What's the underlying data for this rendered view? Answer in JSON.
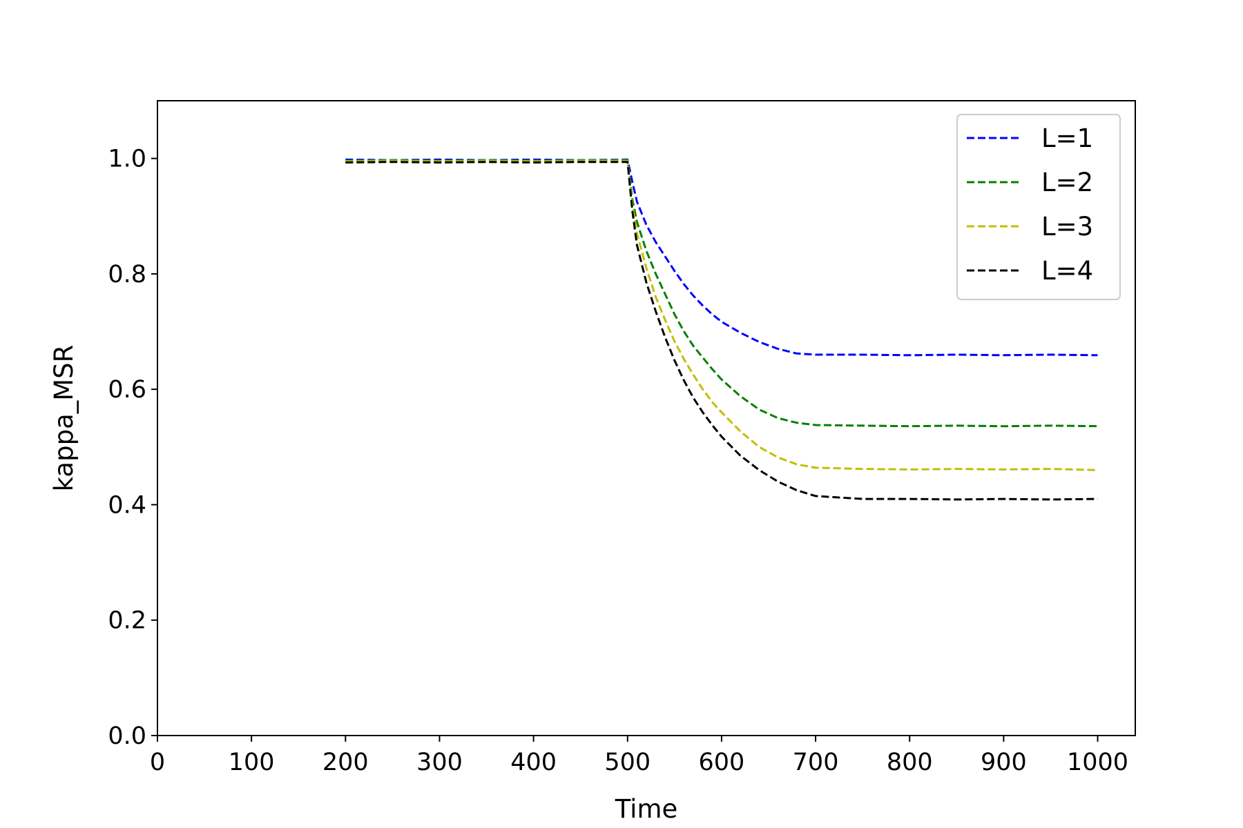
{
  "chart_data": {
    "type": "line",
    "title": "",
    "xlabel": "Time",
    "ylabel": "kappa_MSR",
    "xlim": [
      0,
      1040
    ],
    "ylim": [
      0.0,
      1.1
    ],
    "xticks": [
      0,
      100,
      200,
      300,
      400,
      500,
      600,
      700,
      800,
      900,
      1000
    ],
    "yticks": [
      0.0,
      0.2,
      0.4,
      0.6,
      0.8,
      1.0
    ],
    "xtick_labels": [
      "0",
      "100",
      "200",
      "300",
      "400",
      "500",
      "600",
      "700",
      "800",
      "900",
      "1000"
    ],
    "ytick_labels": [
      "0.0",
      "0.2",
      "0.4",
      "0.6",
      "0.8",
      "1.0"
    ],
    "grid": false,
    "legend_position": "top-right",
    "line_style": "dashed",
    "series": [
      {
        "name": "L=1",
        "color": "#0000ff",
        "x": [
          200,
          250,
          300,
          350,
          400,
          450,
          500,
          505,
          510,
          520,
          530,
          540,
          550,
          560,
          570,
          580,
          590,
          600,
          620,
          640,
          660,
          680,
          700,
          750,
          800,
          850,
          900,
          950,
          1000
        ],
        "y": [
          0.998,
          0.997,
          0.998,
          0.997,
          0.998,
          0.997,
          0.998,
          0.96,
          0.925,
          0.885,
          0.855,
          0.83,
          0.805,
          0.782,
          0.762,
          0.745,
          0.73,
          0.717,
          0.698,
          0.682,
          0.67,
          0.662,
          0.66,
          0.66,
          0.659,
          0.66,
          0.659,
          0.66,
          0.659
        ]
      },
      {
        "name": "L=2",
        "color": "#008000",
        "x": [
          200,
          250,
          300,
          350,
          400,
          450,
          500,
          505,
          510,
          520,
          530,
          540,
          550,
          560,
          570,
          580,
          590,
          600,
          620,
          640,
          660,
          680,
          700,
          750,
          800,
          850,
          900,
          950,
          1000
        ],
        "y": [
          0.996,
          0.997,
          0.996,
          0.997,
          0.996,
          0.997,
          0.997,
          0.93,
          0.89,
          0.84,
          0.8,
          0.765,
          0.73,
          0.7,
          0.675,
          0.655,
          0.635,
          0.617,
          0.588,
          0.565,
          0.55,
          0.542,
          0.538,
          0.537,
          0.536,
          0.537,
          0.536,
          0.537,
          0.536
        ]
      },
      {
        "name": "L=3",
        "color": "#bfbf00",
        "x": [
          200,
          250,
          300,
          350,
          400,
          450,
          500,
          505,
          510,
          520,
          530,
          540,
          550,
          560,
          570,
          580,
          590,
          600,
          620,
          640,
          660,
          680,
          700,
          750,
          800,
          850,
          900,
          950,
          1000
        ],
        "y": [
          0.995,
          0.996,
          0.995,
          0.996,
          0.995,
          0.996,
          0.996,
          0.92,
          0.87,
          0.81,
          0.76,
          0.72,
          0.683,
          0.652,
          0.625,
          0.6,
          0.578,
          0.56,
          0.527,
          0.5,
          0.482,
          0.47,
          0.464,
          0.462,
          0.461,
          0.462,
          0.461,
          0.462,
          0.46
        ]
      },
      {
        "name": "L=4",
        "color": "#000000",
        "x": [
          200,
          250,
          300,
          350,
          400,
          450,
          500,
          505,
          510,
          520,
          530,
          540,
          550,
          560,
          570,
          580,
          590,
          600,
          620,
          640,
          660,
          680,
          700,
          750,
          800,
          850,
          900,
          950,
          1000
        ],
        "y": [
          0.993,
          0.994,
          0.993,
          0.994,
          0.993,
          0.994,
          0.994,
          0.91,
          0.85,
          0.785,
          0.735,
          0.69,
          0.65,
          0.615,
          0.585,
          0.56,
          0.538,
          0.518,
          0.485,
          0.46,
          0.44,
          0.425,
          0.415,
          0.41,
          0.41,
          0.409,
          0.41,
          0.409,
          0.41
        ]
      }
    ]
  }
}
